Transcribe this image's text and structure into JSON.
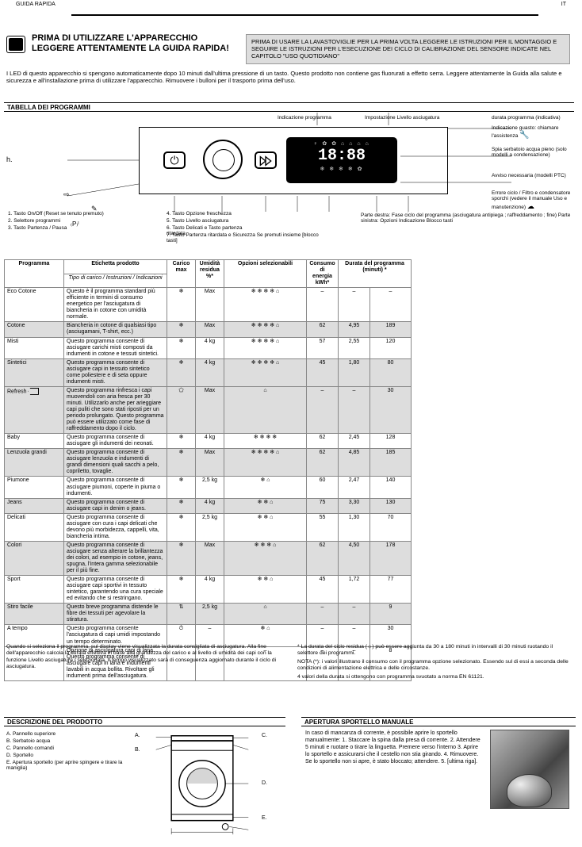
{
  "header": {
    "left": "GUIDA RAPIDA",
    "right": "IT"
  },
  "title_line1": "PRIMA DI UTILIZZARE L'APPARECCHIO",
  "title_line2": "LEGGERE ATTENTAMENTE LA GUIDA RAPIDA!",
  "instruction_box": "PRIMA DI USARE LA LAVASTOVIGLIE PER LA PRIMA VOLTA LEGGERE LE ISTRUZIONI PER IL MONTAGGIO E SEGUIRE LE ISTRUZIONI PER L'ESECUZIONE DEI CICLO DI CALIBRAZIONE DEL SENSORE INDICATE NEL CAPITOLO \"USO QUOTIDIANO\"",
  "first_use": "I LED di questo apparecchio si spengono automaticamente dopo 10 minuti dall'ultima pressione di un tasto. Questo prodotto non contiene gas fluorurati a effetto serra. Leggere attentamente la Guida alla salute e sicurezza e all'installazione prima di utilizzare l'apparecchio. Rimuovere i bulloni per il trasporto prima dell'uso.",
  "section_prog": "TABELLA DEI PROGRAMMI",
  "control_panel": {
    "display_icons_top": "♀ ✿ ✿ ⌂ ⌂ ⌂ ⌂",
    "display_time": "18:88",
    "display_icons_bot": "❄ ❄ ❄ ❄ ✿",
    "labels_left": {
      "1": "1. Tasto On/Off (Reset se tenuto premuto)",
      "2": "2. Selettore programmi",
      "3": "3. Tasto Partenza / Pausa"
    },
    "labels_right": {
      "4": "4. Tasto Opzione freschezza",
      "5": "5. Tasto Livello asciugatura",
      "6": "6. Tasto Delicati e Tasto partenza ritardata",
      "7": "7. Tasto Partenza ritardata e Sicurezza\n   Se premuti insieme\n   [blocco tasti]"
    },
    "display_labels": {
      "top_left": "Indicazione programma",
      "top_right": "Impostazione Livello asciugatura",
      "h": "durata programma (indicativa)",
      "i": "Indicazione guasto: chiamare l'assistenza",
      "j": "Spia serbatoio acqua pieno (solo modelli a condensazione)",
      "k": "Avviso necessaria (modelli PTC)",
      "l": "Errore ciclo / Filtro e condensatore sporchi\n(vedere il manuale Uso e manutenzione)",
      "m": "Parte destra: Fase ciclo del programma\n(asciugatura antipiega ; raffreddamento ; fine)\nParte sinistra: Opzioni\nIndicazione Blocco tasti"
    }
  },
  "table": {
    "headers": {
      "prog": "Programma",
      "rec": "Etichetta prodotto",
      "load": "Carico\nmax",
      "opt": "Opzioni selezionabili",
      "umid": "Umidità\nresidua\n%*",
      "energy": "Consumo\ndi energia\nkWh*",
      "dur": "Durata del\nprogramma\n(minuti) *"
    },
    "header_sub": "Tipo di carico / Instruzioni / Indicazioni",
    "rows": [
      {
        "shaded": false,
        "prog": "Eco Cotone",
        "icon": "❄",
        "load": "Max",
        "rec": "Questo è il programma standard più efficiente in termini di consumo energetico per l'asciugatura di biancheria in cotone con umidità normale.",
        "umid": "–",
        "opts": "❄ ❄ ❄ ❄ ⌂",
        "e": "–",
        "dur": "–"
      },
      {
        "shaded": true,
        "prog": "Cotone",
        "icon": "❄",
        "load": "Max",
        "rec": "Biancheria in cotone di qualsiasi tipo (asciugamani, T-shirt, ecc.)",
        "umid": "62",
        "opts": "❄ ❄ ❄ ❄ ⌂",
        "e": "4,95",
        "dur": "189"
      },
      {
        "shaded": false,
        "prog": "Misti",
        "icon": "❄",
        "load": "4 kg",
        "rec": "Questo programma consente di asciugare carichi misti composti da indumenti in cotone e tessuti sintetici.",
        "umid": "57",
        "opts": "❄ ❄ ❄ ❄ ⌂",
        "e": "2,55",
        "dur": "120"
      },
      {
        "shaded": true,
        "prog": "Sintetici",
        "icon": "❄",
        "load": "4 kg",
        "rec": "Questo programma consente di asciugare capi in tessuto sintetico come poliestere e di seta oppure indumenti misti.",
        "umid": "45",
        "opts": "❄ ❄ ❄ ❄ ⌂",
        "e": "1,80",
        "dur": "80"
      },
      {
        "shaded": true,
        "prog": "Refresh",
        "icon": "⬠",
        "load": "Max",
        "rec": "Questo programma rinfresca i capi muovendoli con aria fresca per 30 minuti. Utilizzarlo anche per arieggiare capi puliti che sono stati riposti per un periodo prolungato. Questo programma può essere utilizzato come fase di raffreddamento dopo il ciclo.",
        "umid": "–",
        "opts": "⌂",
        "e": "–",
        "dur": "30"
      },
      {
        "shaded": false,
        "prog": "Baby",
        "icon": "❄",
        "load": "4 kg",
        "rec": "Questo programma consente di asciugare gli indumenti dei neonati.",
        "umid": "62",
        "opts": "❄ ❄ ❄ ❄",
        "e": "2,45",
        "dur": "128"
      },
      {
        "shaded": true,
        "prog": "Lenzuola grandi",
        "icon": "❄",
        "load": "Max",
        "rec": "Questo programma consente di asciugare lenzuola e indumenti di grandi dimensioni quali sacchi a pelo, copriletto, tovaglie.",
        "umid": "62",
        "opts": "❄ ❄ ❄ ❄ ⌂",
        "e": "4,85",
        "dur": "185"
      },
      {
        "shaded": false,
        "prog": "Piumone",
        "icon": "❄",
        "load": "2,5 kg",
        "rec": "Questo programma consente di asciugare piumoni, coperte in piuma o indumenti.",
        "umid": "60",
        "opts": "❄ ⌂",
        "e": "2,47",
        "dur": "140"
      },
      {
        "shaded": true,
        "prog": "Jeans",
        "icon": "❄",
        "load": "4 kg",
        "rec": "Questo programma consente di asciugare capi in denim o jeans.",
        "umid": "75",
        "opts": "❄ ❄ ⌂",
        "e": "3,30",
        "dur": "130"
      },
      {
        "shaded": false,
        "prog": "Delicati",
        "icon": "❄",
        "load": "2,5 kg",
        "rec": "Questo programma consente di asciugare con cura i capi delicati che devono più morbidezza, cappelli, vita, biancheria intima.",
        "umid": "55",
        "opts": "❄ ❄ ⌂",
        "e": "1,30",
        "dur": "70"
      },
      {
        "shaded": true,
        "prog": "Colori",
        "icon": "❄",
        "load": "Max",
        "rec": "Questo programma consente di asciugare senza alterare la brillantezza dei colori, ad esempio in cotone, jeans, spugna, l'intera gamma selezionabile per il più fine.",
        "umid": "62",
        "opts": "❄ ❄ ❄ ⌂",
        "e": "4,50",
        "dur": "178"
      },
      {
        "shaded": false,
        "prog": "Sport",
        "icon": "❄",
        "load": "4 kg",
        "rec": "Questo programma consente di asciugare capi sportivi in tessuto sintetico, garantendo una cura speciale ed evitando che si restringano.",
        "umid": "45",
        "opts": "❄ ❄ ⌂",
        "e": "1,72",
        "dur": "77"
      },
      {
        "shaded": true,
        "prog": "Stiro facile",
        "icon": "⇅",
        "load": "2,5 kg",
        "rec": "Questo breve programma distende le fibre dei tessuti per agevolare la stiratura.",
        "umid": "–",
        "opts": "⌂",
        "e": "–",
        "dur": "9"
      },
      {
        "shaded": false,
        "prog": "A tempo",
        "icon": "⏱",
        "load": "–",
        "rec": "Questo programma consente l'asciugatura di capi umidi impostando un tempo determinato.",
        "umid": "–",
        "opts": "❄ ⌂",
        "e": "–",
        "dur": "30"
      },
      {
        "shaded": false,
        "prog": "",
        "icon": "",
        "load": "",
        "rec": "Opzione di asciugatura capi di lana. Questo programma consente di asciugare capi in lana e indumenti lavabili in acqua bollita. Rivoltare gli indumenti prima dell'asciugatura.",
        "umid": "–",
        "opts": "–",
        "e": "–",
        "dur": "8"
      }
    ]
  },
  "footnotes": [
    "Quando si seleziona il programma, sul display viene visualizzata la durata consigliata di asciugatura. Alla fine dell'apparecchio calcola la durata effettiva in base alla grandezza del carico e al livello di umidità dei capi con la funzione Livello asciugatura / selezionata. Il tempo visualizzato sarà di conseguenza aggiornato durante il ciclo di asciugatura.",
    "* La durata del ciclo residua (☼) può essere aggiunta da 30 a 180 minuti in intervalli di 30 minuti ruotando il selettore dei programmi.",
    "NOTA (*): i valori illustrano il consumo con il programma opzione selezionato. Essendo sul di essi a seconda delle condizioni di alimentazione elettrica e delle circostanze.",
    "4 valori della durata si ottengono con programma svuotato a norma EN 61121."
  ],
  "section_prod": "DESCRIZIONE DEL PRODOTTO",
  "section_door": "APERTURA SPORTELLO MANUALE",
  "product_labels": {
    "a": "A.",
    "b": "B.",
    "c": "C.",
    "d": "D.",
    "e": "E."
  },
  "product_legend": {
    "a": "Pannello superiore",
    "b": "Serbatoio acqua",
    "c": "Pannello comandi",
    "d": "Sportello",
    "e": "Apertura sportello (per aprire spingere e tirare la maniglia)"
  },
  "door_instructions": "In caso di mancanza di corrente, è possibile aprire lo sportello manualmente:\n1. Staccare la spina dalla presa di corrente.\n2. Attendere 5 minuti e ruotare o tirare la linguetta. Premere verso l'interno\n3. Aprire lo sportello e assicurarsi che il cestello non stia girando.\n4. Rimuovere. Se lo sportello non si apre, è stato bloccato; attendere.\n5. [ultima riga]."
}
